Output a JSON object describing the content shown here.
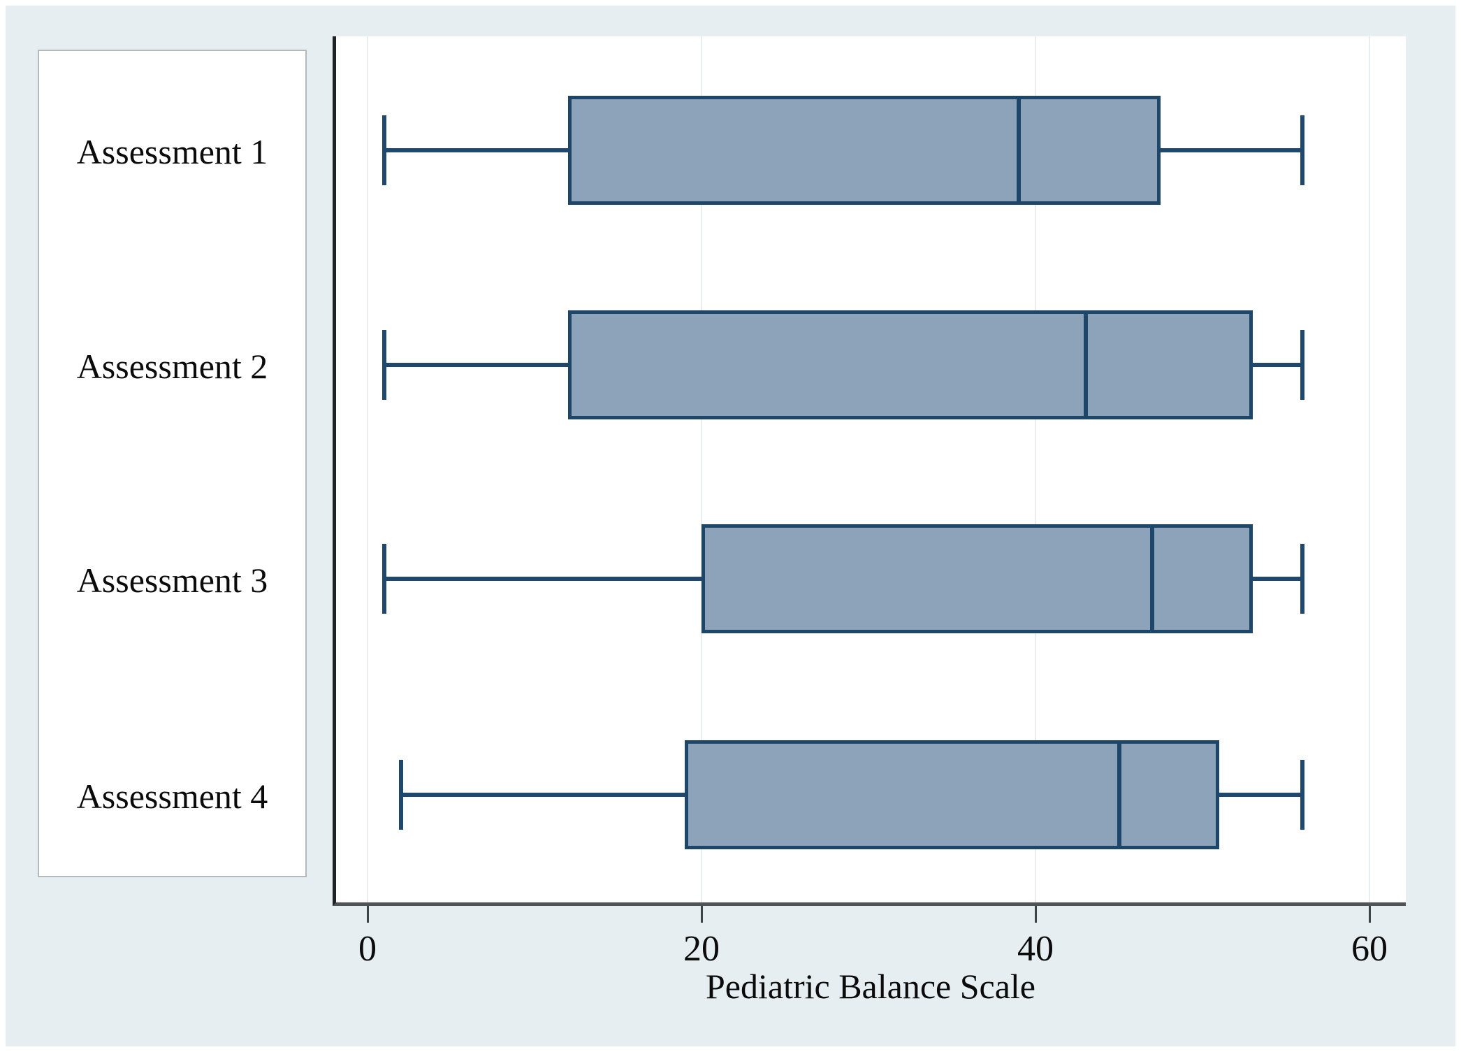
{
  "figure": {
    "background_color": "#e6eef1",
    "frame_color": "#ffffff",
    "plot_background": "#ffffff"
  },
  "chart_data": {
    "type": "boxplot",
    "orientation": "horizontal",
    "title": "",
    "xlabel": "Pediatric Balance Scale",
    "ylabel": "",
    "categories": [
      "Assessment 1",
      "Assessment 2",
      "Assessment 3",
      "Assessment 4"
    ],
    "series": [
      {
        "name": "Assessment 1",
        "min": 1,
        "q1": 12,
        "median": 39,
        "q3": 47.5,
        "max": 56
      },
      {
        "name": "Assessment 2",
        "min": 1,
        "q1": 12,
        "median": 43,
        "q3": 53,
        "max": 56
      },
      {
        "name": "Assessment 3",
        "min": 1,
        "q1": 20,
        "median": 47,
        "q3": 53,
        "max": 56
      },
      {
        "name": "Assessment 4",
        "min": 2,
        "q1": 19,
        "median": 45,
        "q3": 51,
        "max": 56
      }
    ],
    "xticks": [
      0,
      20,
      40,
      60
    ],
    "xlim": [
      -3.4,
      62.4
    ],
    "grid": true,
    "legend": false,
    "colors": {
      "box_fill": "#8da3ba",
      "box_stroke": "#1e4668",
      "whisker": "#20486c",
      "axis_line": "#4e5356",
      "spine": "#1f2326",
      "gridline": "#e7edf0",
      "text": "#0b0b0b"
    }
  }
}
